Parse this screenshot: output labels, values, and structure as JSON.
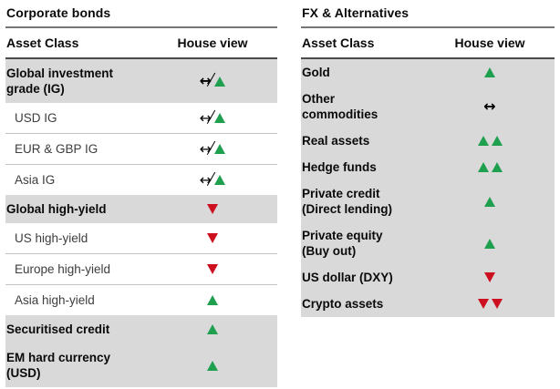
{
  "colors": {
    "up_green": "#1fa04f",
    "down_red": "#cc1020",
    "row_gray": "#d9d9d9",
    "title_rule": "#767676",
    "header_rule": "#4b4b4b",
    "sub_separator": "#c4c4c4"
  },
  "icon_legend": {
    "up": "green-up-triangle",
    "down": "red-down-triangle",
    "neutral": "black-left-right-arrow",
    "neutral-crossed": "black-left-right-arrow-with-slash"
  },
  "tables": [
    {
      "title": "Corporate bonds",
      "columns": {
        "asset_class": "Asset Class",
        "house_view": "House view"
      },
      "rows": [
        {
          "label": "Global investment\ngrade (IG)",
          "variant": "category",
          "separator": false,
          "view": [
            "neutral-crossed",
            "up"
          ]
        },
        {
          "label": "USD IG",
          "variant": "sub",
          "separator": false,
          "view": [
            "neutral-crossed",
            "up"
          ]
        },
        {
          "label": "EUR & GBP IG",
          "variant": "sub",
          "separator": true,
          "view": [
            "neutral-crossed",
            "up"
          ]
        },
        {
          "label": "Asia IG",
          "variant": "sub",
          "separator": true,
          "view": [
            "neutral-crossed",
            "up"
          ]
        },
        {
          "label": "Global high-yield",
          "variant": "category",
          "separator": false,
          "view": [
            "down"
          ]
        },
        {
          "label": "US high-yield",
          "variant": "sub",
          "separator": false,
          "view": [
            "down"
          ]
        },
        {
          "label": "Europe high-yield",
          "variant": "sub",
          "separator": true,
          "view": [
            "down"
          ]
        },
        {
          "label": "Asia high-yield",
          "variant": "sub",
          "separator": true,
          "view": [
            "up"
          ]
        },
        {
          "label": "Securitised credit",
          "variant": "category",
          "separator": false,
          "view": [
            "up"
          ]
        },
        {
          "label": "EM hard currency\n(USD)",
          "variant": "category",
          "separator": false,
          "view": [
            "up"
          ]
        }
      ]
    },
    {
      "title": "FX & Alternatives",
      "columns": {
        "asset_class": "Asset Class",
        "house_view": "House view"
      },
      "rows": [
        {
          "label": "Gold",
          "variant": "category",
          "separator": false,
          "view": [
            "up"
          ]
        },
        {
          "label": "Other\ncommodities",
          "variant": "category",
          "separator": false,
          "view": [
            "neutral"
          ]
        },
        {
          "label": "Real assets",
          "variant": "category",
          "separator": false,
          "view": [
            "up",
            "up"
          ]
        },
        {
          "label": "Hedge funds",
          "variant": "category",
          "separator": false,
          "view": [
            "up",
            "up"
          ]
        },
        {
          "label": "Private credit\n(Direct lending)",
          "variant": "category",
          "separator": false,
          "view": [
            "up"
          ]
        },
        {
          "label": "Private equity\n(Buy out)",
          "variant": "category",
          "separator": false,
          "view": [
            "up"
          ]
        },
        {
          "label": "US dollar (DXY)",
          "variant": "category",
          "separator": false,
          "view": [
            "down"
          ]
        },
        {
          "label": "Crypto assets",
          "variant": "category",
          "separator": false,
          "view": [
            "down",
            "down"
          ]
        }
      ]
    }
  ]
}
